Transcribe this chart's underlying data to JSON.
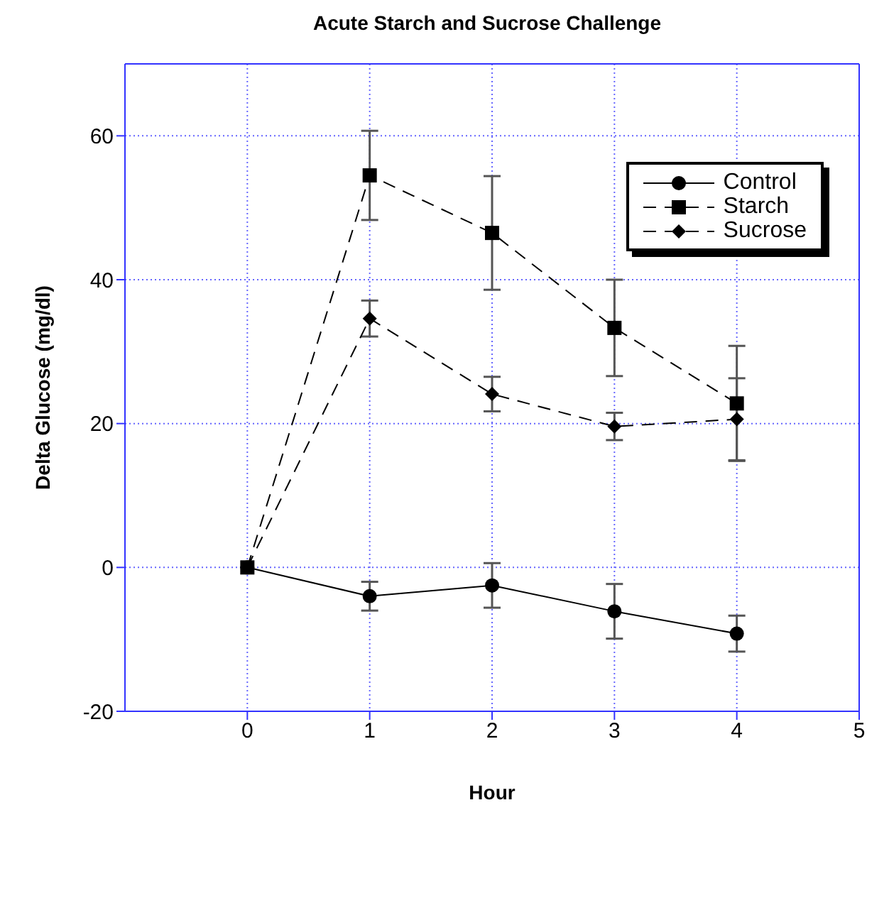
{
  "chart_data": {
    "type": "line",
    "title": "Acute Starch and Sucrose Challenge",
    "xlabel": "Hour",
    "ylabel": "Delta Glucose (mg/dl)",
    "x": [
      0,
      1,
      2,
      3,
      4
    ],
    "xlim": [
      -1,
      5
    ],
    "xticks": [
      0,
      1,
      2,
      3,
      4,
      5
    ],
    "ylim": [
      -20,
      70
    ],
    "yticks": [
      -20,
      0,
      20,
      40,
      60
    ],
    "grid": true,
    "legend": "top right",
    "series": [
      {
        "name": "Control",
        "color": "#000000",
        "marker": "circle",
        "line_style": "solid",
        "values": [
          0,
          -4.0,
          -2.5,
          -6.1,
          -9.2
        ],
        "errors": [
          null,
          2.0,
          3.1,
          3.8,
          2.5
        ]
      },
      {
        "name": "Starch",
        "color": "#000000",
        "marker": "square",
        "line_style": "dashed",
        "values": [
          0,
          54.5,
          46.5,
          33.3,
          22.8
        ],
        "errors": [
          null,
          6.2,
          7.9,
          6.7,
          8.0
        ]
      },
      {
        "name": "Sucrose",
        "color": "#000000",
        "marker": "diamond",
        "line_style": "dashed",
        "values": [
          0,
          34.6,
          24.1,
          19.6,
          20.6
        ],
        "errors": [
          null,
          2.5,
          2.4,
          1.9,
          5.7
        ]
      }
    ]
  }
}
